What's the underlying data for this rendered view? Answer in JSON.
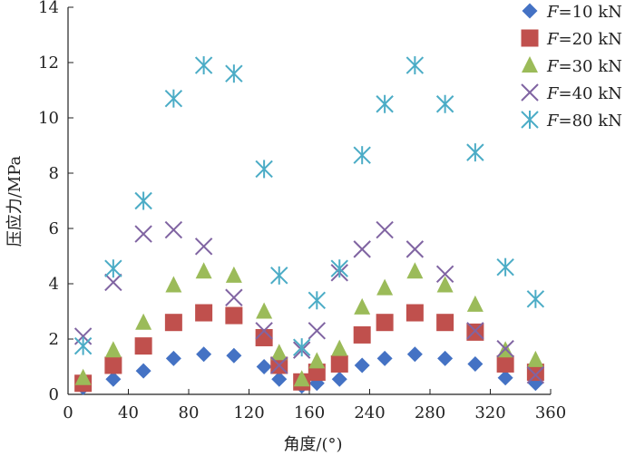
{
  "chart_data": {
    "type": "scatter",
    "xlabel": "角度/(°)",
    "ylabel": "压应力/MPa",
    "xlim": [
      0,
      360
    ],
    "ylim": [
      0,
      14
    ],
    "x_ticks": [
      "0",
      "40",
      "80",
      "120",
      "160",
      "240",
      "280",
      "320",
      "360"
    ],
    "y_ticks": [
      "0",
      "2",
      "4",
      "6",
      "8",
      "10",
      "12",
      "14"
    ],
    "grid": false,
    "legend_position": "top-right",
    "series": [
      {
        "name": "F=10 kN",
        "marker": "diamond",
        "color": "#4472C4",
        "x": [
          10,
          30,
          50,
          70,
          90,
          110,
          130,
          140,
          155,
          170,
          200,
          230,
          250,
          270,
          290,
          310,
          330,
          350
        ],
        "y": [
          0.25,
          0.55,
          0.85,
          1.3,
          1.45,
          1.4,
          1.0,
          0.55,
          0.3,
          0.4,
          0.55,
          1.05,
          1.3,
          1.45,
          1.3,
          1.1,
          0.6,
          0.4
        ]
      },
      {
        "name": "F=20 kN",
        "marker": "square",
        "color": "#C0504D",
        "x": [
          10,
          30,
          50,
          70,
          90,
          110,
          130,
          140,
          155,
          170,
          200,
          230,
          250,
          270,
          290,
          310,
          330,
          350
        ],
        "y": [
          0.4,
          1.05,
          1.75,
          2.6,
          2.95,
          2.85,
          2.05,
          1.05,
          0.45,
          0.8,
          1.1,
          2.15,
          2.6,
          2.95,
          2.6,
          2.25,
          1.1,
          0.8
        ]
      },
      {
        "name": "F=30 kN",
        "marker": "triangle",
        "color": "#9BBB59",
        "x": [
          10,
          30,
          50,
          70,
          90,
          110,
          130,
          140,
          155,
          170,
          200,
          230,
          250,
          270,
          290,
          310,
          330,
          350
        ],
        "y": [
          0.6,
          1.6,
          2.6,
          3.95,
          4.45,
          4.3,
          3.0,
          1.5,
          0.55,
          1.2,
          1.65,
          3.15,
          3.85,
          4.45,
          3.95,
          3.25,
          1.6,
          1.25
        ]
      },
      {
        "name": "F=40 kN",
        "marker": "x",
        "color": "#8064A2",
        "x": [
          10,
          30,
          50,
          70,
          90,
          110,
          130,
          140,
          155,
          170,
          200,
          230,
          250,
          270,
          290,
          310,
          330,
          350
        ],
        "y": [
          2.1,
          4.05,
          5.8,
          5.95,
          5.35,
          3.5,
          2.3,
          1.05,
          1.6,
          2.3,
          4.4,
          5.25,
          5.95,
          5.25,
          4.35,
          2.3,
          1.65,
          0.7
        ]
      },
      {
        "name": "F=80 kN",
        "marker": "asterisk",
        "color": "#4BACC6",
        "x": [
          10,
          30,
          50,
          70,
          90,
          110,
          130,
          140,
          155,
          170,
          200,
          230,
          250,
          270,
          290,
          310,
          330,
          350
        ],
        "y": [
          1.75,
          4.55,
          7.0,
          10.7,
          11.9,
          11.6,
          8.15,
          4.3,
          1.7,
          3.4,
          4.55,
          8.65,
          10.5,
          11.9,
          10.5,
          8.75,
          4.6,
          3.45
        ]
      }
    ]
  }
}
